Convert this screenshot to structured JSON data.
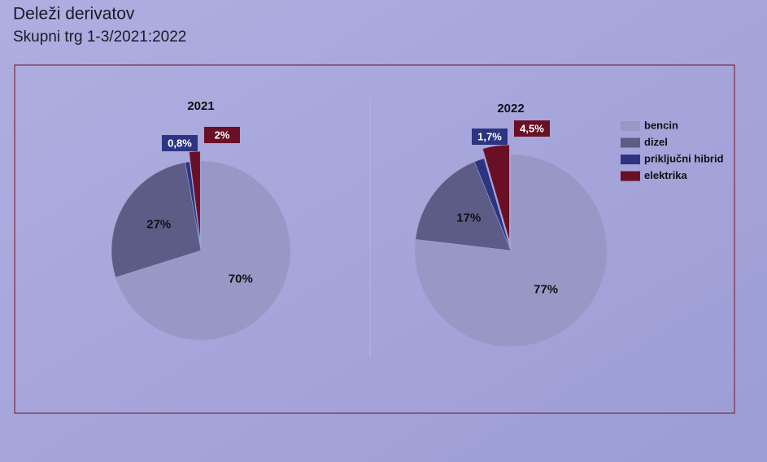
{
  "slide": {
    "title": "Deleži derivatov",
    "subtitle": "Skupni trg  1-3/2021:2022"
  },
  "chart_data": [
    {
      "type": "pie",
      "title": "2021",
      "categories": [
        "bencin",
        "dizel",
        "priključni hibrid",
        "elektrika"
      ],
      "values": [
        70,
        27,
        0.8,
        2
      ],
      "value_labels": [
        "70%",
        "27%",
        "0,8%",
        "2%"
      ],
      "colors": [
        "#9898c6",
        "#5c5c86",
        "#2d3582",
        "#6a1026"
      ]
    },
    {
      "type": "pie",
      "title": "2022",
      "categories": [
        "bencin",
        "dizel",
        "priključni hibrid",
        "elektrika"
      ],
      "values": [
        77,
        17,
        1.7,
        4.5
      ],
      "value_labels": [
        "77%",
        "17%",
        "1,7%",
        "4,5%"
      ],
      "colors": [
        "#9898c6",
        "#5c5c86",
        "#2d3582",
        "#6a1026"
      ],
      "legend": "right"
    }
  ]
}
